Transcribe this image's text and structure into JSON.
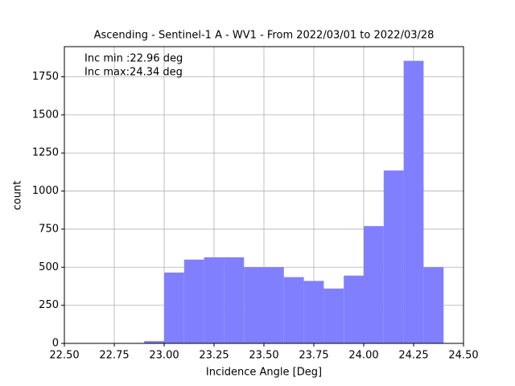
{
  "chart_data": {
    "type": "histogram",
    "title": "Ascending - Sentinel-1 A - WV1 - From 2022/03/01 to 2022/03/28",
    "x_label": "Incidence Angle [Deg]",
    "y_label": "count",
    "annotations": [
      "Inc min :22.96 deg",
      "Inc max:24.34 deg"
    ],
    "bins": [
      22.9,
      23.0,
      23.1,
      23.2,
      23.3,
      23.4,
      23.5,
      23.6,
      23.7,
      23.8,
      23.9,
      24.0,
      24.1,
      24.2,
      24.3,
      24.4
    ],
    "values": [
      15,
      465,
      550,
      565,
      565,
      500,
      500,
      435,
      410,
      360,
      445,
      770,
      1135,
      1855,
      500
    ],
    "color": "#8080ff",
    "xlim": [
      22.5,
      24.5
    ],
    "xticks": [
      {
        "value": 22.5,
        "label": "22.50"
      },
      {
        "value": 22.75,
        "label": "22.75"
      },
      {
        "value": 23.0,
        "label": "23.00"
      },
      {
        "value": 23.25,
        "label": "23.25"
      },
      {
        "value": 23.5,
        "label": "23.50"
      },
      {
        "value": 23.75,
        "label": "23.75"
      },
      {
        "value": 24.0,
        "label": "24.00"
      },
      {
        "value": 24.25,
        "label": "24.25"
      },
      {
        "value": 24.5,
        "label": "24.50"
      }
    ],
    "ylim": [
      0,
      1948
    ],
    "yticks": [
      0,
      250,
      500,
      750,
      1000,
      1250,
      1500,
      1750
    ],
    "grid": true
  }
}
